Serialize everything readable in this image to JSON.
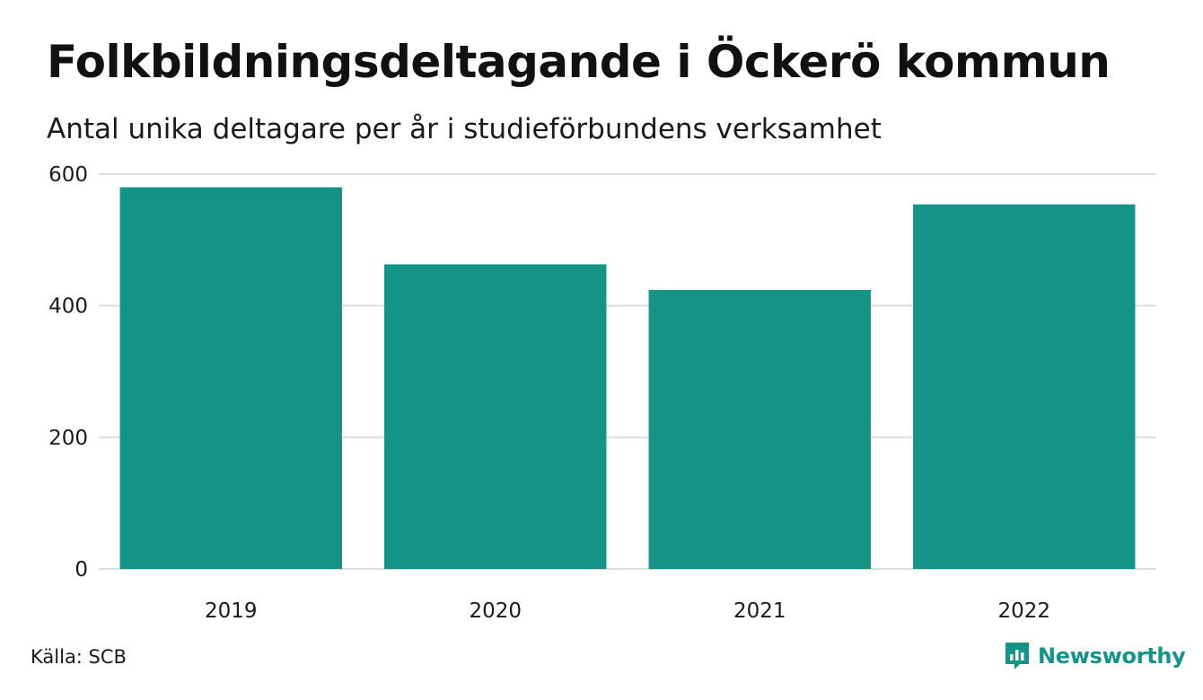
{
  "header": {
    "title": "Folkbildningsdeltagande i Öckerö kommun",
    "subtitle": "Antal unika deltagare per år i studieförbundens verksamhet"
  },
  "footer": {
    "source": "Källa: SCB",
    "brand": "Newsworthy",
    "brand_icon": "newsworthy-logo-icon"
  },
  "colors": {
    "bar": "#149487",
    "grid": "#dddddd",
    "brand": "#149487"
  },
  "chart_data": {
    "type": "bar",
    "categories": [
      "2019",
      "2020",
      "2021",
      "2022"
    ],
    "values": [
      580,
      463,
      424,
      554
    ],
    "ylim": [
      0,
      600
    ],
    "yticks": [
      0,
      200,
      400,
      600
    ],
    "grid": true,
    "legend": "none"
  }
}
